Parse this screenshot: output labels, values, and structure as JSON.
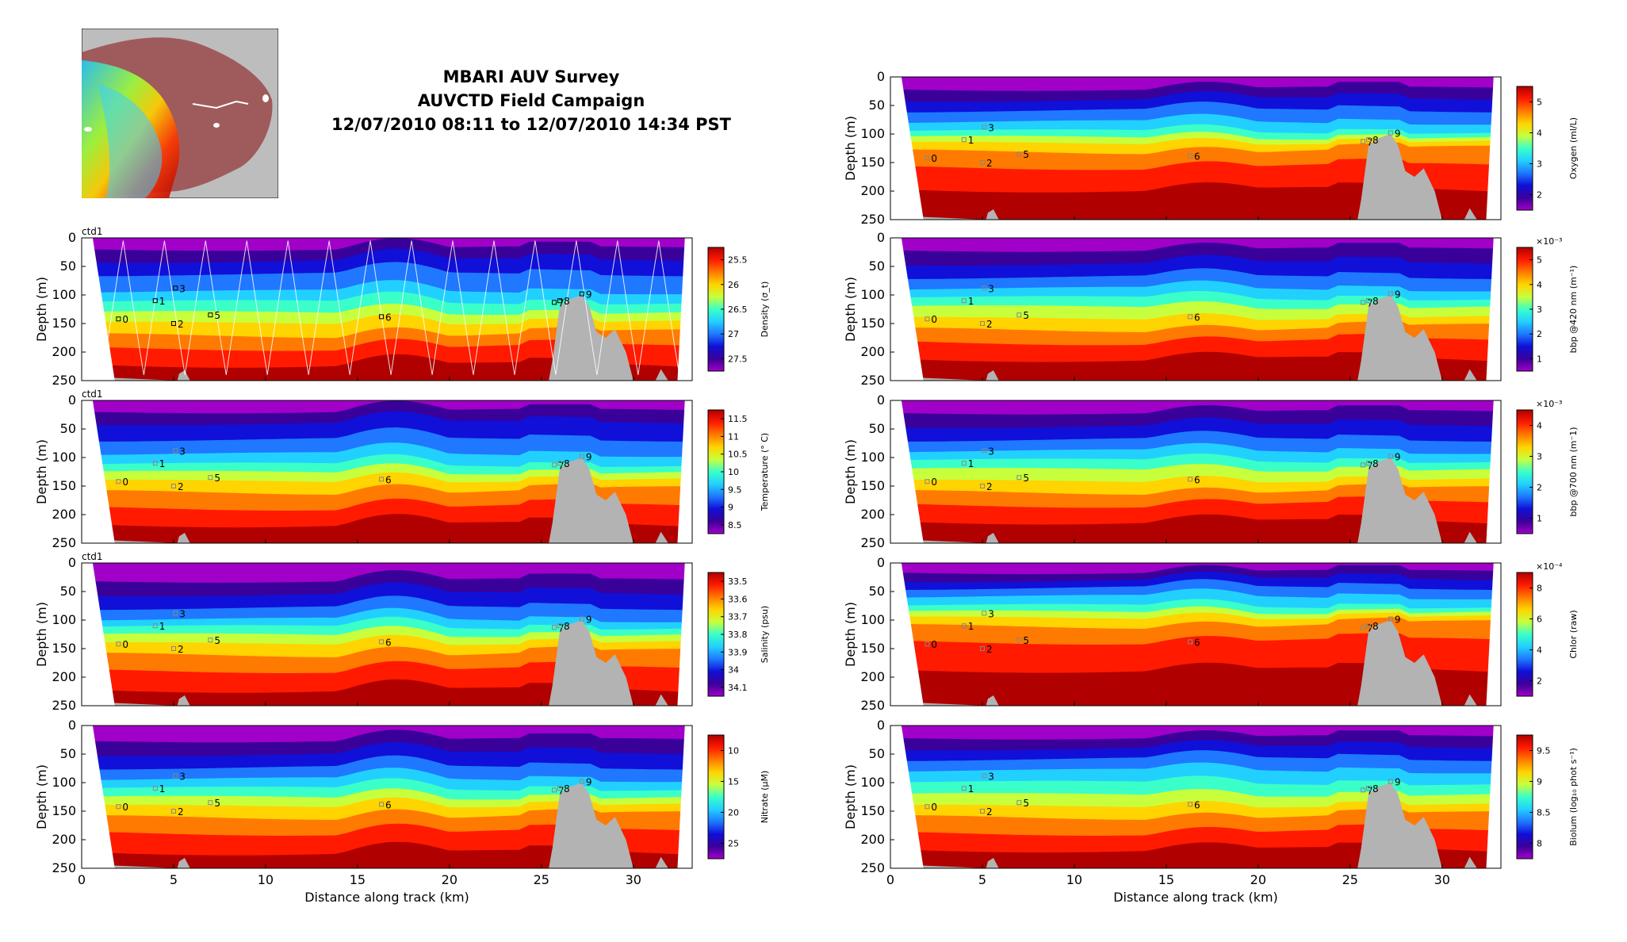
{
  "header": {
    "line1": "MBARI AUV Survey",
    "line2": "AUVCTD Field Campaign",
    "line3": "12/07/2010 08:11 to 12/07/2010 14:34 PST"
  },
  "colors": {
    "bathymetry": "#b3b3b3",
    "track": "#ffffff",
    "jet": [
      "#a100c8",
      "#3a009a",
      "#1010d8",
      "#1f78ff",
      "#22d0ff",
      "#3bffc8",
      "#c8ff3c",
      "#ffd400",
      "#ff7a00",
      "#ff1a00",
      "#b00000"
    ]
  },
  "chart_data": [
    {
      "type": "heatmap",
      "panel": "left-1",
      "variable": "Density",
      "top_label": "ctd1",
      "ylabel": "Depth (m)",
      "xlabel": "",
      "colorbar_label": "Density (σ_t)",
      "colorbar_ticks": [
        "25.5",
        "26",
        "26.5",
        "27",
        "27.5"
      ],
      "colorbar_reversed": true,
      "xlim": [
        0,
        33.2
      ],
      "ylim": [
        250,
        0
      ],
      "x_ticks": [],
      "y_ticks": [
        "0",
        "50",
        "100",
        "150",
        "200",
        "250"
      ],
      "boundaries": [
        18,
        40,
        65,
        95,
        112,
        130,
        148,
        170,
        195,
        225
      ],
      "show_track": true
    },
    {
      "type": "heatmap",
      "panel": "left-2",
      "variable": "Temperature",
      "top_label": "ctd1",
      "ylabel": "Depth (m)",
      "xlabel": "",
      "colorbar_label": "Temperature (° C)",
      "colorbar_ticks": [
        "8.5",
        "9",
        "9.5",
        "10",
        "10.5",
        "11",
        "11.5"
      ],
      "colorbar_reversed": false,
      "xlim": [
        0,
        33.2
      ],
      "ylim": [
        250,
        0
      ],
      "x_ticks": [],
      "y_ticks": [
        "0",
        "50",
        "100",
        "150",
        "200",
        "250"
      ],
      "boundaries": [
        18,
        40,
        70,
        95,
        112,
        125,
        140,
        160,
        190,
        220
      ],
      "show_track": false
    },
    {
      "type": "heatmap",
      "panel": "left-3",
      "variable": "Salinity",
      "top_label": "ctd1",
      "ylabel": "Depth (m)",
      "xlabel": "",
      "colorbar_label": "Salinity (psu)",
      "colorbar_ticks": [
        "33.5",
        "33.6",
        "33.7",
        "33.8",
        "33.9",
        "34",
        "34.1"
      ],
      "colorbar_reversed": true,
      "xlim": [
        0,
        33.2
      ],
      "ylim": [
        250,
        0
      ],
      "x_ticks": [],
      "y_ticks": [
        "0",
        "50",
        "100",
        "150",
        "200",
        "250"
      ],
      "boundaries": [
        30,
        55,
        80,
        100,
        112,
        125,
        140,
        160,
        190,
        225
      ],
      "show_track": false
    },
    {
      "type": "heatmap",
      "panel": "left-4",
      "variable": "Nitrate",
      "top_label": "",
      "ylabel": "Depth (m)",
      "xlabel": "Distance along track (km)",
      "colorbar_label": "Nitrate (µM)",
      "colorbar_ticks": [
        "10",
        "15",
        "20",
        "25"
      ],
      "colorbar_reversed": true,
      "xlim": [
        0,
        33.2
      ],
      "ylim": [
        250,
        0
      ],
      "x_ticks": [
        "0",
        "5",
        "10",
        "15",
        "20",
        "25",
        "30"
      ],
      "y_ticks": [
        "0",
        "50",
        "100",
        "150",
        "200",
        "250"
      ],
      "boundaries": [
        25,
        50,
        75,
        95,
        110,
        125,
        140,
        160,
        190,
        225
      ],
      "show_track": false
    },
    {
      "type": "heatmap",
      "panel": "right-1",
      "variable": "Oxygen",
      "top_label": "",
      "ylabel": "Depth (m)",
      "xlabel": "",
      "colorbar_label": "Oxygen (ml/L)",
      "colorbar_ticks": [
        "2",
        "3",
        "4",
        "5"
      ],
      "colorbar_reversed": false,
      "xlim": [
        0,
        33.2
      ],
      "ylim": [
        250,
        0
      ],
      "x_ticks": [],
      "y_ticks": [
        "0",
        "50",
        "100",
        "150",
        "200",
        "250"
      ],
      "boundaries": [
        20,
        40,
        60,
        80,
        95,
        105,
        115,
        130,
        160,
        200
      ],
      "show_track": false
    },
    {
      "type": "heatmap",
      "panel": "right-2",
      "variable": "bbp 420",
      "top_label": "",
      "ylabel": "Depth (m)",
      "xlabel": "",
      "colorbar_label": "bbp @420 nm (m⁻¹)",
      "colorbar_exponent": "×10⁻³",
      "colorbar_ticks": [
        "1",
        "2",
        "3",
        "4",
        "5"
      ],
      "colorbar_reversed": false,
      "xlim": [
        0,
        33.2
      ],
      "ylim": [
        250,
        0
      ],
      "x_ticks": [],
      "y_ticks": [
        "0",
        "50",
        "100",
        "150",
        "200",
        "250"
      ],
      "boundaries": [
        20,
        45,
        70,
        90,
        105,
        120,
        140,
        160,
        185,
        215
      ],
      "show_track": false
    },
    {
      "type": "heatmap",
      "panel": "right-3",
      "variable": "bbp 700",
      "top_label": "",
      "ylabel": "Depth (m)",
      "xlabel": "",
      "colorbar_label": "bbp @700 nm (m⁻1)",
      "colorbar_exponent": "×10⁻³",
      "colorbar_ticks": [
        "1",
        "2",
        "3",
        "4"
      ],
      "colorbar_reversed": false,
      "xlim": [
        0,
        33.2
      ],
      "ylim": [
        250,
        0
      ],
      "x_ticks": [],
      "y_ticks": [
        "0",
        "50",
        "100",
        "150",
        "200",
        "250"
      ],
      "boundaries": [
        20,
        45,
        70,
        90,
        105,
        120,
        140,
        160,
        185,
        215
      ],
      "show_track": false
    },
    {
      "type": "heatmap",
      "panel": "right-4",
      "variable": "Chlor",
      "top_label": "",
      "ylabel": "Depth (m)",
      "xlabel": "",
      "colorbar_label": "Chlor (raw)",
      "colorbar_exponent": "×10⁻⁴",
      "colorbar_ticks": [
        "2",
        "4",
        "6",
        "8"
      ],
      "colorbar_reversed": false,
      "xlim": [
        0,
        33.2
      ],
      "ylim": [
        250,
        0
      ],
      "x_ticks": [],
      "y_ticks": [
        "0",
        "50",
        "100",
        "150",
        "200",
        "250"
      ],
      "boundaries": [
        15,
        30,
        45,
        60,
        75,
        85,
        95,
        110,
        140,
        190
      ],
      "show_track": false
    },
    {
      "type": "heatmap",
      "panel": "right-5",
      "variable": "Biolum",
      "top_label": "",
      "ylabel": "Depth (m)",
      "xlabel": "Distance along track (km)",
      "colorbar_label": "Biolum (log₁₀ phot s⁻¹)",
      "colorbar_ticks": [
        "8",
        "8.5",
        "9",
        "9.5"
      ],
      "colorbar_reversed": false,
      "xlim": [
        0,
        33.2
      ],
      "ylim": [
        250,
        0
      ],
      "x_ticks": [
        "0",
        "5",
        "10",
        "15",
        "20",
        "25",
        "30"
      ],
      "y_ticks": [
        "0",
        "50",
        "100",
        "150",
        "200",
        "250"
      ],
      "boundaries": [
        20,
        40,
        60,
        80,
        100,
        120,
        140,
        160,
        190,
        220
      ],
      "show_track": false
    }
  ],
  "station_labels": [
    "0",
    "1",
    "2",
    "3",
    "5",
    "6",
    "7",
    "8",
    "9"
  ]
}
